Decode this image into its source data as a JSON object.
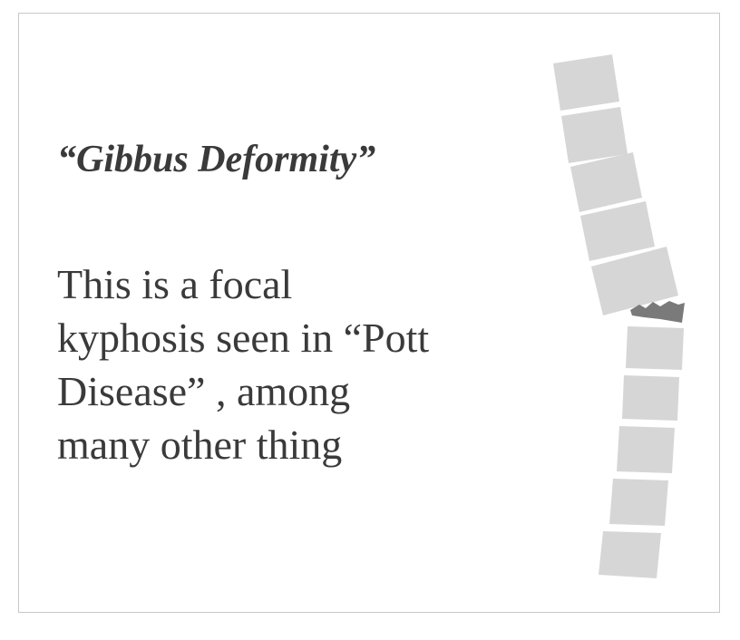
{
  "slide": {
    "title": "“Gibbus Deformity”",
    "body_lines": [
      "This is a focal",
      "kyphosis seen in “Pott",
      "Disease” , among",
      "many other thing"
    ]
  },
  "illustration": {
    "name": "spine-illustration",
    "vertebra_color": "#d6d6d6",
    "collapsed_color": "#7a7a7a"
  }
}
